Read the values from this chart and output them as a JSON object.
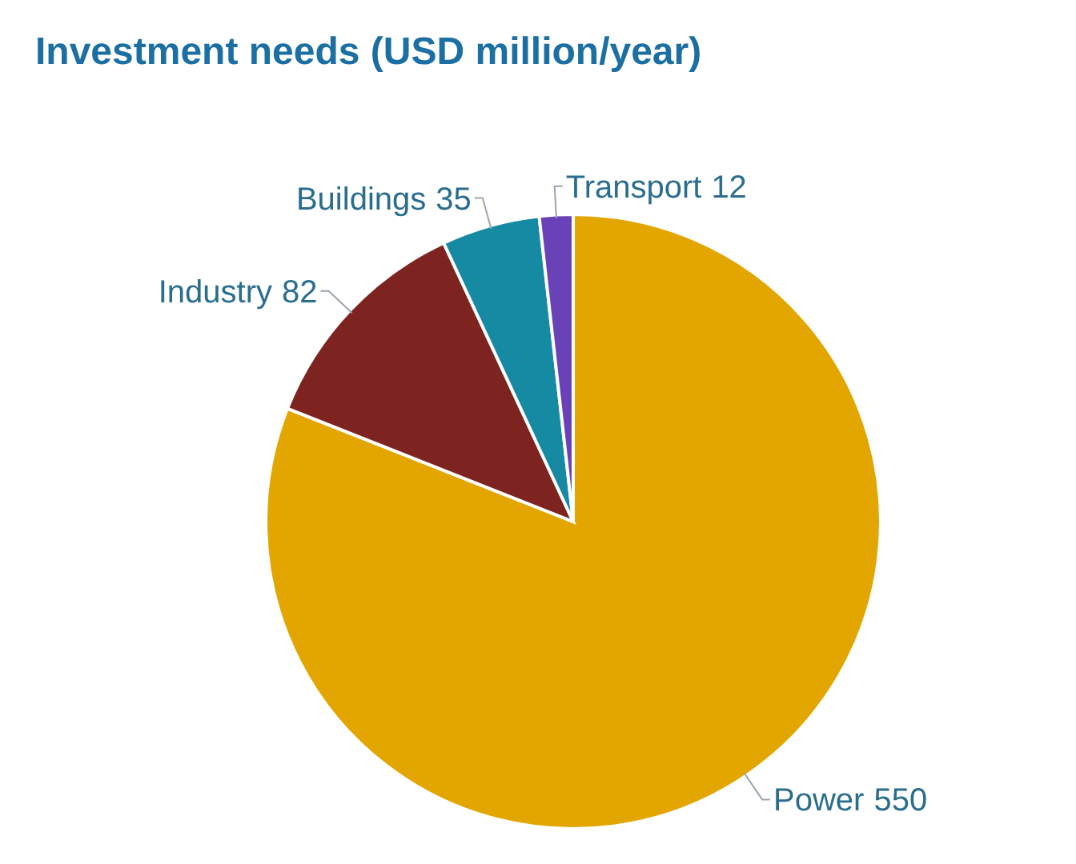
{
  "chart_data": {
    "type": "pie",
    "title": "Investment needs (USD million/year)",
    "categories": [
      "Power",
      "Industry",
      "Buildings",
      "Transport"
    ],
    "values": [
      550,
      82,
      35,
      12
    ],
    "colors": [
      "#e3a600",
      "#7d2420",
      "#168aa3",
      "#6a42b8"
    ],
    "data_labels": true
  }
}
